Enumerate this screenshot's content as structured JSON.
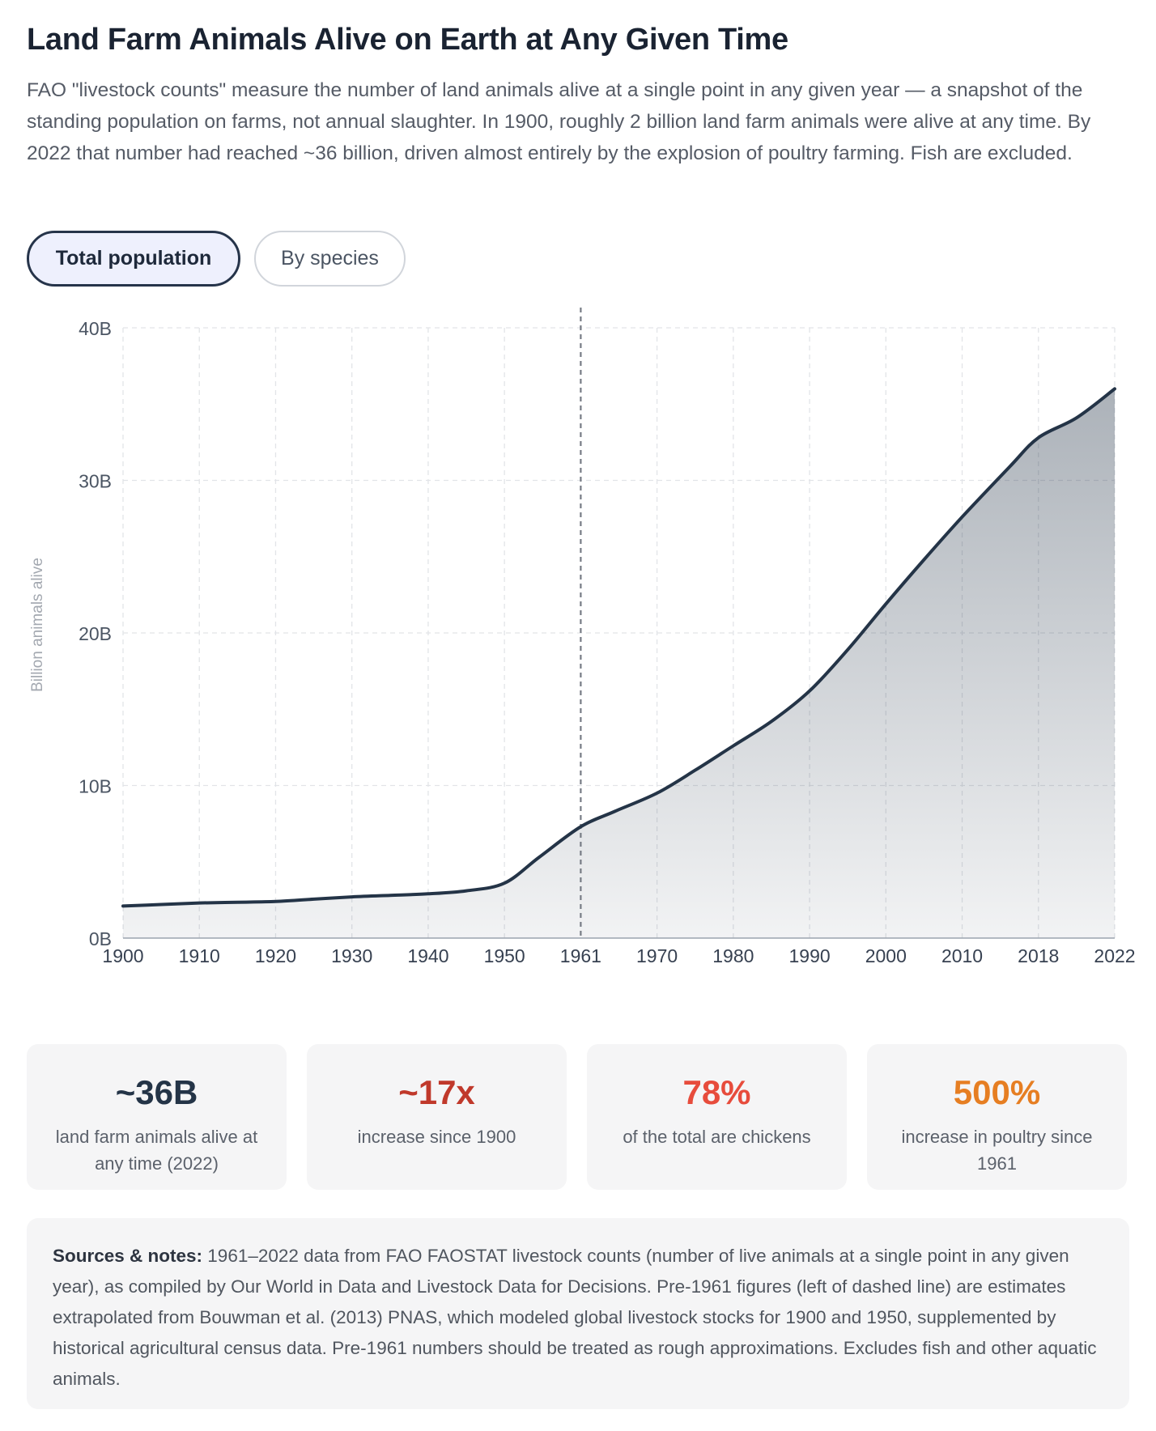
{
  "header": {
    "title": "Land Farm Animals Alive on Earth at Any Given Time",
    "subtitle": "FAO \"livestock counts\" measure the number of land animals alive at a single point in any given year — a snapshot of the standing population on farms, not annual slaughter. In 1900, roughly 2 billion land farm animals were alive at any time. By 2022 that number had reached ~36 billion, driven almost entirely by the explosion of poultry farming. Fish are excluded."
  },
  "tabs": [
    {
      "label": "Total population",
      "active": true
    },
    {
      "label": "By species",
      "active": false
    }
  ],
  "chart_data": {
    "type": "area",
    "ylabel": "Billion animals alive",
    "ylim": [
      0,
      40
    ],
    "yticks": [
      {
        "value": 0,
        "label": "0B"
      },
      {
        "value": 10,
        "label": "10B"
      },
      {
        "value": 20,
        "label": "20B"
      },
      {
        "value": 30,
        "label": "30B"
      },
      {
        "value": 40,
        "label": "40B"
      }
    ],
    "categories": [
      "1900",
      "1910",
      "1920",
      "1930",
      "1940",
      "1950",
      "1961",
      "1970",
      "1980",
      "1990",
      "2000",
      "2010",
      "2018",
      "2022"
    ],
    "x": [
      1900,
      1905,
      1910,
      1915,
      1920,
      1925,
      1930,
      1935,
      1940,
      1945,
      1950,
      1955,
      1961,
      1965,
      1970,
      1975,
      1980,
      1985,
      1990,
      1995,
      2000,
      2005,
      2010,
      2015,
      2018,
      2020,
      2022
    ],
    "values": [
      2.1,
      2.2,
      2.3,
      2.35,
      2.4,
      2.55,
      2.7,
      2.8,
      2.9,
      3.1,
      3.6,
      5.3,
      7.3,
      8.3,
      9.5,
      11.0,
      12.6,
      14.2,
      16.2,
      18.9,
      21.9,
      24.8,
      27.6,
      30.9,
      32.8,
      34.1,
      36.0
    ],
    "line_color": "#243447",
    "marker_year": 1961,
    "grid": true
  },
  "stats": [
    {
      "value": "~36B",
      "label": "land farm animals alive at any time (2022)",
      "color": "#243447"
    },
    {
      "value": "~17x",
      "label": "increase since 1900",
      "color": "#c0392b"
    },
    {
      "value": "78%",
      "label": "of the total are chickens",
      "color": "#e74c3c"
    },
    {
      "value": "500%",
      "label": "increase in poultry since 1961",
      "color": "#e67e22"
    }
  ],
  "notes": {
    "heading": "Sources & notes:",
    "text": " 1961–2022 data from FAO FAOSTAT livestock counts (number of live animals at a single point in any given year), as compiled by Our World in Data and Livestock Data for Decisions. Pre-1961 figures (left of dashed line) are estimates extrapolated from Bouwman et al. (2013) PNAS, which modeled global livestock stocks for 1900 and 1950, supplemented by historical agricultural census data. Pre-1961 numbers should be treated as rough approximations. Excludes fish and other aquatic animals."
  }
}
